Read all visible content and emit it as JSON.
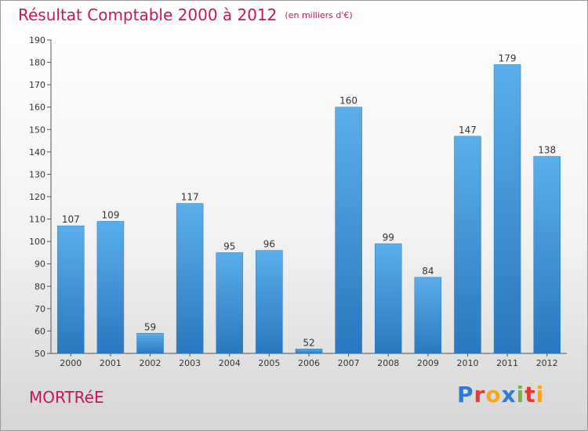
{
  "header": {
    "title": "Résultat Comptable 2000 à 2012",
    "subtitle": "(en milliers d'€)"
  },
  "footer": {
    "city": "MORTRéE",
    "logo_letters": [
      {
        "ch": "P",
        "color": "#2e7bd6"
      },
      {
        "ch": "r",
        "color": "#e53935"
      },
      {
        "ch": "o",
        "color": "#f5a623"
      },
      {
        "ch": "x",
        "color": "#2e7bd6"
      },
      {
        "ch": "i",
        "color": "#7cb342"
      },
      {
        "ch": "t",
        "color": "#e53935"
      },
      {
        "ch": "i",
        "color": "#f5a623"
      }
    ]
  },
  "colors": {
    "title": "#c2185b",
    "bar_light": "#5aaeea",
    "bar_dark": "#2a78bf"
  },
  "chart_data": {
    "type": "bar",
    "categories": [
      "2000",
      "2001",
      "2002",
      "2003",
      "2004",
      "2005",
      "2006",
      "2007",
      "2008",
      "2009",
      "2010",
      "2011",
      "2012"
    ],
    "values": [
      107,
      109,
      59,
      117,
      95,
      96,
      52,
      160,
      99,
      84,
      147,
      179,
      138
    ],
    "ylim": [
      50,
      190
    ],
    "yticks": [
      50,
      60,
      70,
      80,
      90,
      100,
      110,
      120,
      130,
      140,
      150,
      160,
      170,
      180,
      190
    ],
    "grid": false,
    "legend": "none"
  }
}
